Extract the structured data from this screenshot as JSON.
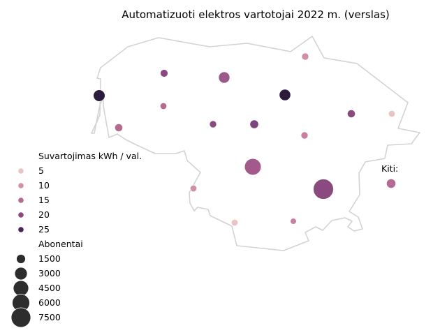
{
  "title": "Automatizuoti elektros vartotojai 2022 m. (verslas)",
  "colors": {
    "border": "#d3d3d3",
    "size_legend_marker": "#2d2d2d",
    "hue_scale": [
      "#e8c5c4",
      "#d190a3",
      "#b56a8f",
      "#8a4a80",
      "#4b2558"
    ]
  },
  "legend": {
    "hue_title": "Suvartojimas kWh / val.",
    "hue_items": [
      {
        "label": "5",
        "value": 5,
        "color": "#e8c5c4"
      },
      {
        "label": "10",
        "value": 10,
        "color": "#d190a3"
      },
      {
        "label": "15",
        "value": 15,
        "color": "#b56a8f"
      },
      {
        "label": "20",
        "value": 20,
        "color": "#8a4a80"
      },
      {
        "label": "25",
        "value": 25,
        "color": "#4b2558"
      }
    ],
    "size_title": "Abonentai",
    "size_items": [
      {
        "label": "1500",
        "value": 1500
      },
      {
        "label": "3000",
        "value": 3000
      },
      {
        "label": "4500",
        "value": 4500
      },
      {
        "label": "6000",
        "value": 6000
      },
      {
        "label": "7500",
        "value": 7500
      }
    ]
  },
  "other_label": "Kiti:",
  "points": [
    {
      "id": "far-west",
      "consumption": 27,
      "subscribers": 2000,
      "color": "#2d1b3e"
    },
    {
      "id": "north-west",
      "consumption": 20,
      "subscribers": 600,
      "color": "#8a4a80"
    },
    {
      "id": "north-central",
      "consumption": 18,
      "subscribers": 1800,
      "color": "#9c5888"
    },
    {
      "id": "north-east-top",
      "consumption": 11,
      "subscribers": 500,
      "color": "#d190a3"
    },
    {
      "id": "north-east-center",
      "consumption": 27,
      "subscribers": 1900,
      "color": "#2d1b3e"
    },
    {
      "id": "west-inner",
      "consumption": 17,
      "subscribers": 400,
      "color": "#b56a8f"
    },
    {
      "id": "west-lower",
      "consumption": 15,
      "subscribers": 700,
      "color": "#b56a8f"
    },
    {
      "id": "central-left",
      "consumption": 20,
      "subscribers": 500,
      "color": "#8a4a80"
    },
    {
      "id": "central",
      "consumption": 21,
      "subscribers": 900,
      "color": "#7c4480"
    },
    {
      "id": "central-east",
      "consumption": 12,
      "subscribers": 500,
      "color": "#c97fa0"
    },
    {
      "id": "east",
      "consumption": 20,
      "subscribers": 700,
      "color": "#8a4a80"
    },
    {
      "id": "far-east",
      "consumption": 5,
      "subscribers": 400,
      "color": "#e8c5c4"
    },
    {
      "id": "south-central-large",
      "consumption": 17,
      "subscribers": 4800,
      "color": "#a3598a"
    },
    {
      "id": "south-east-largest",
      "consumption": 20,
      "subscribers": 7500,
      "color": "#8a4a80"
    },
    {
      "id": "south-west",
      "consumption": 9,
      "subscribers": 400,
      "color": "#d190a3"
    },
    {
      "id": "south",
      "consumption": 5,
      "subscribers": 400,
      "color": "#e8c5c4"
    },
    {
      "id": "south-2",
      "consumption": 12,
      "subscribers": 300,
      "color": "#c97fa0"
    },
    {
      "id": "other",
      "consumption": 14,
      "subscribers": 1100,
      "color": "#b56a8f"
    }
  ]
}
